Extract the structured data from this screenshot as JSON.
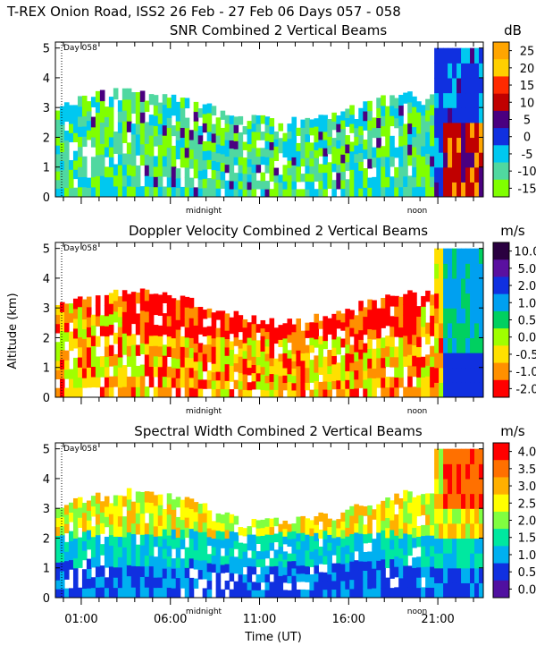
{
  "header": {
    "title": "T-REX Onion Road, ISS2  26 Feb - 27 Feb 06 Days 057 - 058"
  },
  "chart_data": [
    {
      "type": "heatmap",
      "title": "SNR Combined 2 Vertical Beams",
      "unit": "dB",
      "ylabel": "Altitude (km)",
      "xlabel": "Time (UT)",
      "ylim": [
        0,
        5
      ],
      "yticks": [
        "0",
        "1",
        "2",
        "3",
        "4",
        "5"
      ],
      "day_marker": "Day 058",
      "time_markers": [
        "midnight",
        "noon"
      ],
      "colorbar": {
        "labels": [
          "25",
          "20",
          "15",
          "10",
          "5",
          "0",
          "-5",
          "-10",
          "-15"
        ],
        "colors": [
          "#ffa500",
          "#ffd000",
          "#ff2a00",
          "#c00000",
          "#4a0080",
          "#1030e0",
          "#00c8f0",
          "#50d8a0",
          "#80ff00"
        ]
      }
    },
    {
      "type": "heatmap",
      "title": "Doppler Velocity Combined 2 Vertical Beams",
      "unit": "m/s",
      "ylabel": "Altitude (km)",
      "ylim": [
        0,
        5
      ],
      "yticks": [
        "0",
        "1",
        "2",
        "3",
        "4",
        "5"
      ],
      "day_marker": "Day 058",
      "time_markers": [
        "midnight",
        "noon"
      ],
      "colorbar": {
        "labels": [
          "10.0",
          "5.0",
          "2.0",
          "1.0",
          "0.5",
          "0.0",
          "-0.5",
          "-1.0",
          "-2.0"
        ],
        "colors": [
          "#2a0040",
          "#5a10a0",
          "#1030e0",
          "#00a0f0",
          "#00d060",
          "#a0ff00",
          "#ffe000",
          "#ff9000",
          "#ff0000"
        ]
      }
    },
    {
      "type": "heatmap",
      "title": "Spectral Width Combined 2 Vertical Beams",
      "unit": "m/s",
      "ylabel": "Altitude (km)",
      "xlabel": "Time (UT)",
      "ylim": [
        0,
        5
      ],
      "yticks": [
        "0",
        "1",
        "2",
        "3",
        "4",
        "5"
      ],
      "xticks": [
        "01:00",
        "06:00",
        "11:00",
        "16:00",
        "21:00"
      ],
      "day_marker": "Day 058",
      "time_markers": [
        "midnight",
        "noon"
      ],
      "colorbar": {
        "labels": [
          "4.0",
          "3.5",
          "3.0",
          "2.5",
          "2.0",
          "1.5",
          "1.0",
          "0.5",
          "0.0"
        ],
        "colors": [
          "#ff0000",
          "#ff7000",
          "#ffb000",
          "#ffff00",
          "#80ff40",
          "#00e8a0",
          "#00b0f0",
          "#1030e0",
          "#5010a0"
        ]
      }
    }
  ],
  "x_axis": {
    "label": "Time (UT)",
    "ticks": [
      "01:00",
      "06:00",
      "11:00",
      "16:00",
      "21:00"
    ]
  },
  "y_axis": {
    "label": "Altitude (km)"
  }
}
